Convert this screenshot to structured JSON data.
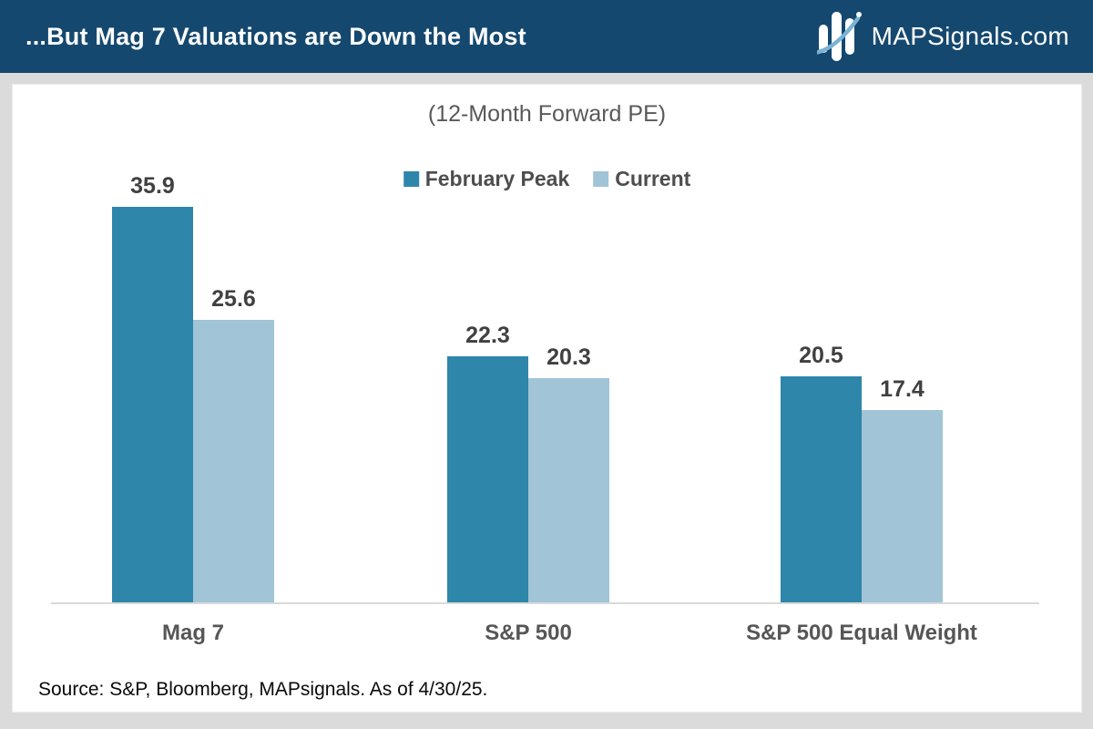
{
  "header": {
    "title": "...But Mag 7 Valuations are Down the Most",
    "logo_text": "MAPSignals.com",
    "background_color": "#14486F",
    "logo_swoosh_color": "#79B2D6"
  },
  "chart_data": {
    "type": "bar",
    "title": "(12-Month Forward PE)",
    "categories": [
      "Mag 7",
      "S&P 500",
      "S&P 500 Equal Weight"
    ],
    "series": [
      {
        "name": "February Peak",
        "color": "#2E86AB",
        "values": [
          35.9,
          22.3,
          20.5
        ]
      },
      {
        "name": "Current",
        "color": "#A1C4D7",
        "values": [
          25.6,
          20.3,
          17.4
        ]
      }
    ],
    "ylim": [
      0,
      40
    ],
    "grid": false,
    "legend_position": "top-center",
    "data_labels": true,
    "axis_line_color": "#D9D9D9"
  },
  "source_note": "Source: S&P, Bloomberg, MAPsignals. As of 4/30/25."
}
